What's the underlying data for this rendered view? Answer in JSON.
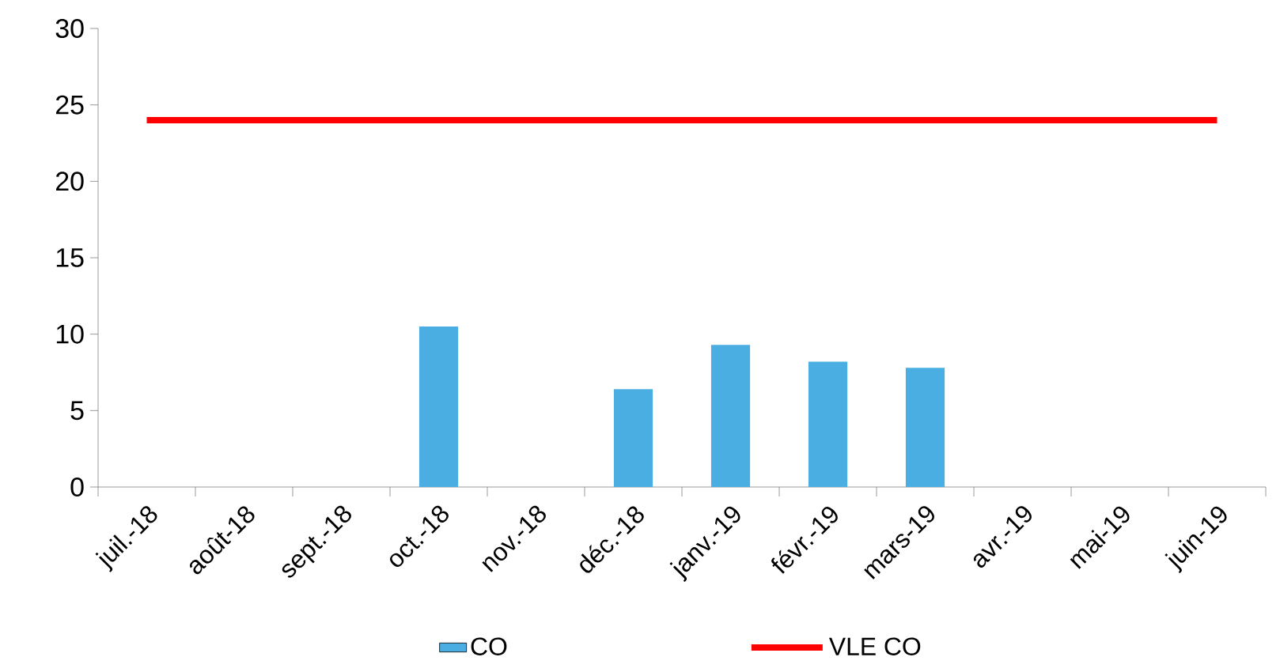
{
  "chart_data": {
    "type": "bar",
    "categories": [
      "juil.-18",
      "août-18",
      "sept.-18",
      "oct.-18",
      "nov.-18",
      "déc.-18",
      "janv.-19",
      "févr.-19",
      "mars-19",
      "avr.-19",
      "mai-19",
      "juin-19"
    ],
    "series": [
      {
        "name": "CO",
        "color": "#4baee3",
        "values": [
          null,
          null,
          null,
          10.5,
          null,
          6.4,
          9.3,
          8.2,
          7.8,
          null,
          null,
          null
        ]
      },
      {
        "name": "VLE CO",
        "type": "line",
        "color": "#ff0000",
        "values": [
          24,
          24,
          24,
          24,
          24,
          24,
          24,
          24,
          24,
          24,
          24,
          24
        ]
      }
    ],
    "ylim": [
      0,
      30
    ],
    "yticks": [
      0,
      5,
      10,
      15,
      20,
      25,
      30
    ],
    "grid": false,
    "legend": "bottom",
    "marker": "none",
    "line_style": "solid"
  }
}
